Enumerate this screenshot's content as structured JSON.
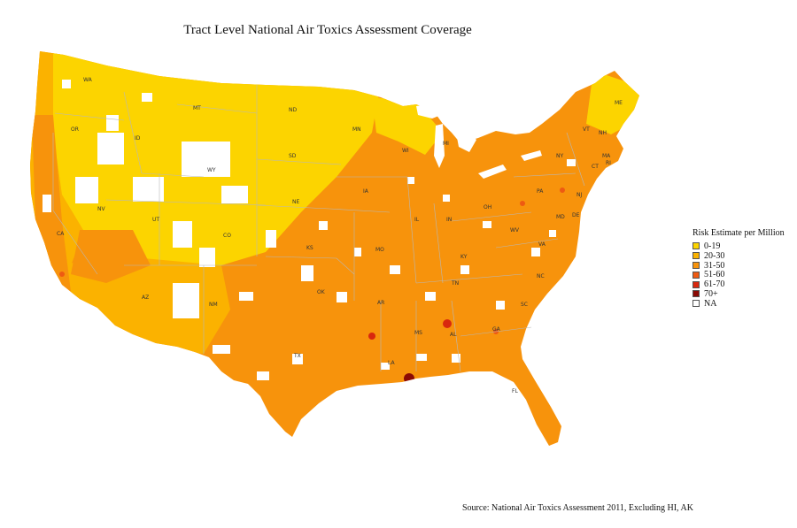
{
  "title": "Tract Level National Air Toxics Assessment Coverage",
  "legend": {
    "title": "Risk Estimate per Million",
    "items": [
      {
        "label": "0-19",
        "color": "#fcd400"
      },
      {
        "label": "20-30",
        "color": "#fbb200"
      },
      {
        "label": "31-50",
        "color": "#f7930c"
      },
      {
        "label": "51-60",
        "color": "#ee5a12"
      },
      {
        "label": "61-70",
        "color": "#d8280e"
      },
      {
        "label": "70+",
        "color": "#8b0a05"
      },
      {
        "label": "NA",
        "color": "#ffffff"
      }
    ]
  },
  "state_labels": [
    "WA",
    "OR",
    "CA",
    "NV",
    "ID",
    "MT",
    "WY",
    "UT",
    "AZ",
    "CO",
    "NM",
    "ND",
    "SD",
    "NE",
    "KS",
    "OK",
    "TX",
    "MN",
    "IA",
    "MO",
    "AR",
    "LA",
    "WI",
    "IL",
    "MS",
    "MI",
    "IN",
    "KY",
    "TN",
    "AL",
    "OH",
    "WV",
    "GA",
    "FL",
    "SC",
    "NC",
    "VA",
    "PA",
    "NY",
    "MD",
    "DE",
    "NJ",
    "CT",
    "RI",
    "MA",
    "VT",
    "NH",
    "ME"
  ],
  "source": "Source: National Air Toxics Assessment 2011, Excluding HI, AK"
}
